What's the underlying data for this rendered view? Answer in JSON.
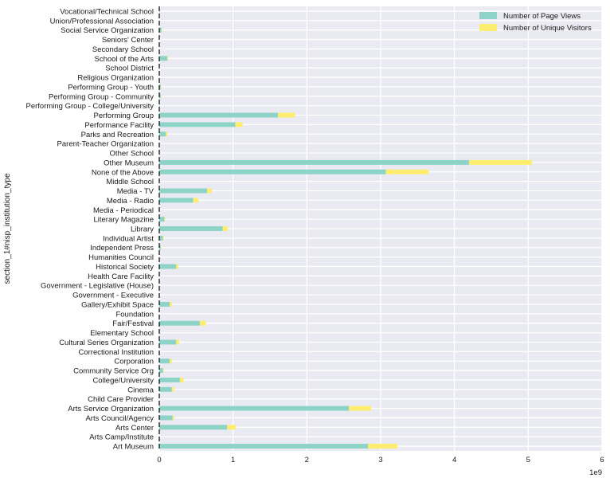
{
  "chart_data": {
    "type": "bar",
    "orientation": "horizontal",
    "stacked": true,
    "ylabel": "section_1#nisp_institution_type",
    "xlabel": "",
    "x_exponent_label": "1e9",
    "xlim": [
      0,
      6
    ],
    "x_ticks": [
      "0",
      "1",
      "2",
      "3",
      "4",
      "5",
      "6"
    ],
    "grid": true,
    "legend_position": "top-right",
    "categories": [
      "Vocational/Technical School",
      "Union/Professional Association",
      "Social Service Organization",
      "Seniors' Center",
      "Secondary School",
      "School of the Arts",
      "School District",
      "Religious Organization",
      "Performing Group - Youth",
      "Performing Group - Community",
      "Performing Group - College/University",
      "Performing Group",
      "Performance Facility",
      "Parks and Recreation",
      "Parent-Teacher Organization",
      "Other School",
      "Other Museum",
      "None of the Above",
      "Middle School",
      "Media - TV",
      "Media - Radio",
      "Media - Periodical",
      "Literary Magazine",
      "Library",
      "Individual Artist",
      "Independent Press",
      "Humanities Council",
      "Historical Society",
      "Health Care Facility",
      "Government - Legislative (House)",
      "Government - Executive",
      "Gallery/Exhibit Space",
      "Foundation",
      "Fair/Festival",
      "Elementary School",
      "Cultural Series Organization",
      "Correctional Institution",
      "Corporation",
      "Community Service Org",
      "College/University",
      "Cinema",
      "Child Care Provider",
      "Arts Service Organization",
      "Arts Council/Agency",
      "Arts Center",
      "Arts Camp/Institute",
      "Art Museum"
    ],
    "series": [
      {
        "name": "Number of Page Views",
        "color": "#8dd3c7",
        "values": [
          0.003,
          0.0,
          0.03,
          0.0,
          0.0,
          0.11,
          0.0,
          0.0,
          0.02,
          0.02,
          0.005,
          1.61,
          1.03,
          0.09,
          0.0,
          0.002,
          4.2,
          3.07,
          0.0,
          0.65,
          0.46,
          0.0,
          0.07,
          0.86,
          0.05,
          0.02,
          0.0,
          0.23,
          0.0,
          0.0,
          0.0,
          0.14,
          0.0,
          0.55,
          0.0,
          0.23,
          0.0,
          0.14,
          0.05,
          0.28,
          0.17,
          0.0,
          2.57,
          0.18,
          0.92,
          0.0,
          2.83
        ]
      },
      {
        "name": "Number of Unique Visitors",
        "color": "#ffed6f",
        "values": [
          0.0,
          0.0,
          0.005,
          0.0,
          0.0,
          0.01,
          0.0,
          0.0,
          0.003,
          0.003,
          0.0,
          0.23,
          0.1,
          0.02,
          0.0,
          0.0,
          0.85,
          0.58,
          0.0,
          0.06,
          0.07,
          0.0,
          0.01,
          0.07,
          0.01,
          0.003,
          0.0,
          0.03,
          0.0,
          0.0,
          0.0,
          0.03,
          0.0,
          0.08,
          0.0,
          0.04,
          0.0,
          0.03,
          0.01,
          0.05,
          0.03,
          0.0,
          0.3,
          0.02,
          0.12,
          0.0,
          0.4
        ]
      }
    ]
  }
}
